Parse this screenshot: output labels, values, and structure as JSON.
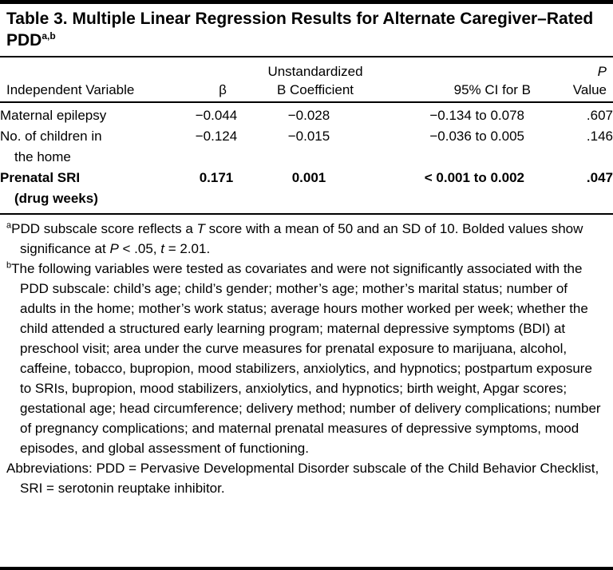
{
  "title": {
    "text": "Table 3. Multiple Linear Regression Results for Alternate Caregiver–Rated PDD",
    "superscript": "a,b"
  },
  "header": {
    "col_variable": "Independent Variable",
    "col_beta": "β",
    "col_b_line1": "Unstandardized",
    "col_b_line2": "B Coefficient",
    "col_ci": "95% CI for B",
    "col_p_line1": "P",
    "col_p_line2": "Value"
  },
  "rows": [
    {
      "variable": "Maternal epilepsy",
      "variable_cont": "",
      "beta": "−0.044",
      "b_coefficient": "−0.028",
      "ci": "−0.134 to 0.078",
      "p": ".607"
    },
    {
      "variable": "No. of children in",
      "variable_cont": "the home",
      "beta": "−0.124",
      "b_coefficient": "−0.015",
      "ci": "−0.036 to 0.005",
      "p": ".146"
    },
    {
      "variable": "Prenatal SRI",
      "variable_cont": "(drug weeks)",
      "beta": "0.171",
      "b_coefficient": "0.001",
      "ci": "< 0.001 to 0.002",
      "p": ".047"
    }
  ],
  "footnotes": {
    "a": {
      "marker": "a",
      "part1": "PDD subscale score reflects a ",
      "italic1": "T",
      "part2": " score with a mean of 50 and an SD of 10. Bolded values show significance at ",
      "italic2": "P",
      "part3": " < .05, ",
      "italic3": "t",
      "part4": " = 2.01."
    },
    "b": {
      "marker": "b",
      "text": "The following variables were tested as covariates and were not significantly associated with the PDD subscale: child’s age; child’s gender; mother’s age; mother’s marital status; number of adults in the home; mother’s work status; average hours mother worked per week; whether the child attended a structured early learning program; maternal depressive symptoms (BDI) at preschool visit; area under the curve measures for prenatal exposure to marijuana, alcohol, caffeine, tobacco, bupropion, mood stabilizers, anxiolytics, and hypnotics; postpartum exposure to SRIs, bupropion, mood stabilizers, anxiolytics, and hypnotics; birth weight, Apgar scores; gestational age; head circumference; delivery method; number of delivery complications; number of pregnancy complications; and maternal prenatal measures of depressive symptoms, mood episodes, and global assessment of functioning."
    },
    "abbreviations": "Abbreviations: PDD = Pervasive Developmental Disorder subscale of the Child Behavior Checklist, SRI = serotonin reuptake inhibitor."
  }
}
